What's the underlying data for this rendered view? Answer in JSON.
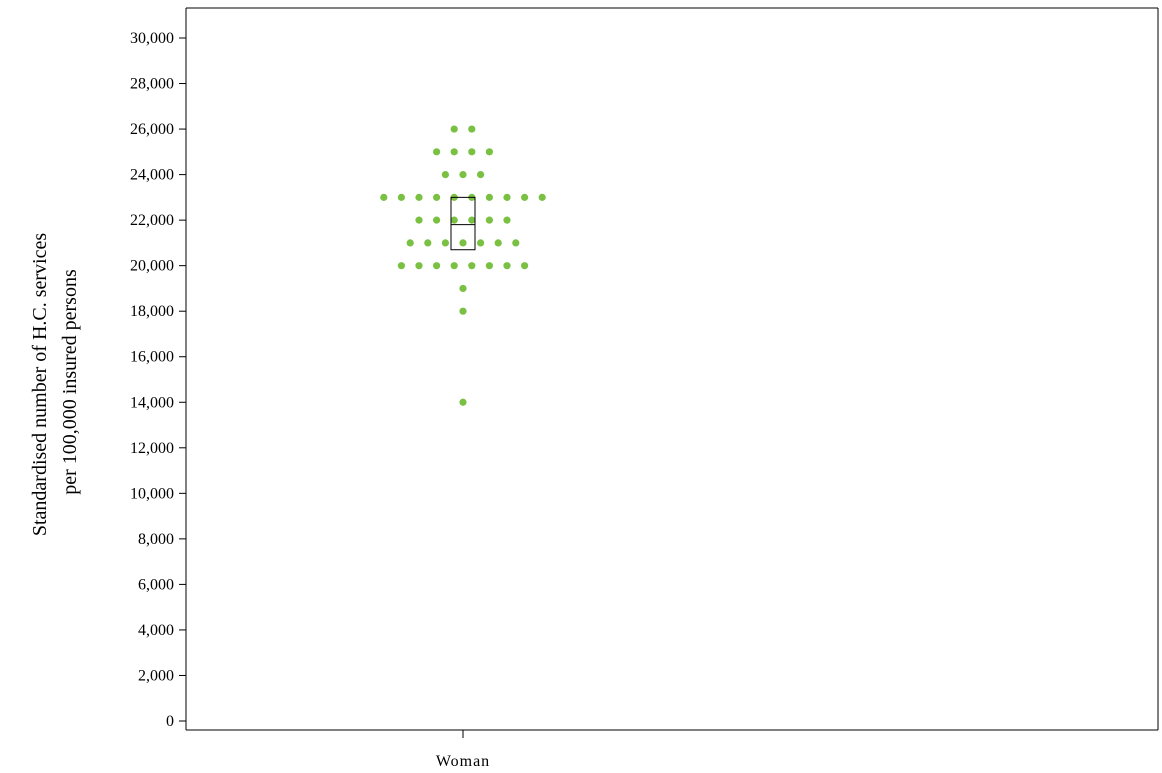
{
  "chart_data": {
    "type": "scatter",
    "subtype": "dot-strip-plot",
    "title": "",
    "ylabel_lines": [
      "Standardised number of H.C. services",
      "per 100,000 insured persons"
    ],
    "xlabel": "",
    "categories": [
      "Woman"
    ],
    "ylim": [
      0,
      30000
    ],
    "y_ticks": [
      0,
      2000,
      4000,
      6000,
      8000,
      10000,
      12000,
      14000,
      16000,
      18000,
      20000,
      22000,
      24000,
      26000,
      28000,
      30000
    ],
    "y_tick_labels": [
      "0",
      "2,000",
      "4,000",
      "6,000",
      "8,000",
      "10,000",
      "12,000",
      "14,000",
      "16,000",
      "18,000",
      "20,000",
      "22,000",
      "24,000",
      "26,000",
      "28,000",
      "30,000"
    ],
    "grid": false,
    "point_color": "#7ac143",
    "series": [
      {
        "category": "Woman",
        "values": [
          26000,
          26000,
          25000,
          25000,
          25000,
          25000,
          24000,
          24000,
          24000,
          23000,
          23000,
          23000,
          23000,
          23000,
          23000,
          23000,
          23000,
          23000,
          23000,
          22000,
          22000,
          22000,
          22000,
          22000,
          22000,
          21000,
          21000,
          21000,
          21000,
          21000,
          21000,
          21000,
          20000,
          20000,
          20000,
          20000,
          20000,
          20000,
          20000,
          20000,
          19000,
          18000,
          14000
        ]
      }
    ],
    "summary_box": {
      "category": "Woman",
      "lower": 20700,
      "median": 21800,
      "upper": 23000
    }
  }
}
